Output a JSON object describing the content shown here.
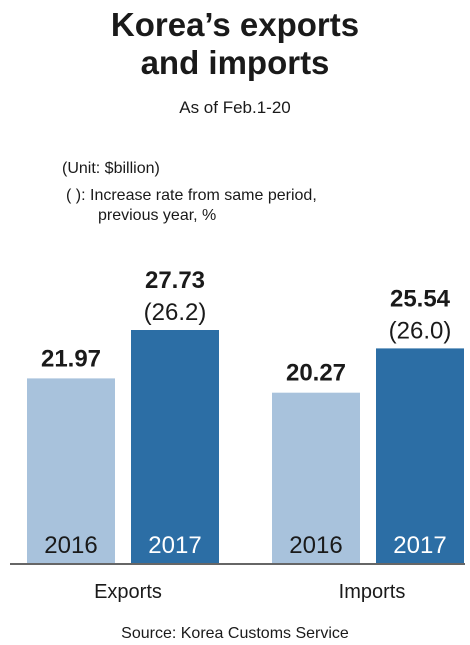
{
  "title_line1": "Korea’s exports",
  "title_line2": "and imports",
  "subtitle": "As of Feb.1-20",
  "unit_note": "(Unit: $billion)",
  "rate_note_line1": "(  ): Increase rate from same period,",
  "rate_note_line2": "previous year, %",
  "source": "Source: Korea Customs Service",
  "colors": {
    "bar_2016": "#a8c2dc",
    "bar_2017": "#2c6ea5",
    "baseline": "#333333"
  },
  "chart_data": {
    "type": "bar",
    "categories": [
      "Exports",
      "Imports"
    ],
    "series": [
      {
        "name": "2016",
        "values": [
          21.97,
          20.27
        ],
        "labels": [
          "21.97",
          "20.27"
        ],
        "rates": [
          "",
          ""
        ]
      },
      {
        "name": "2017",
        "values": [
          27.73,
          25.54
        ],
        "labels": [
          "27.73",
          "25.54"
        ],
        "rates": [
          "(26.2)",
          "(26.0)"
        ]
      }
    ],
    "ylim": [
      0,
      27.73
    ]
  }
}
